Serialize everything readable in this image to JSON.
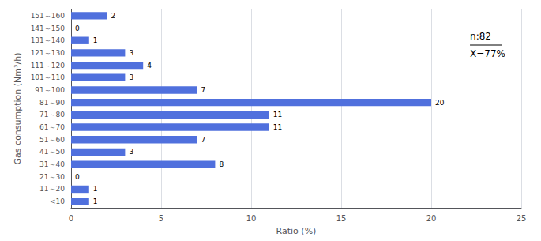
{
  "chart_data": {
    "type": "bar",
    "orientation": "horizontal",
    "categories": [
      "151～160",
      "141～150",
      "131～140",
      "121～130",
      "111～120",
      "101～110",
      "91～100",
      "81～90",
      "71～80",
      "61～70",
      "51～60",
      "41～50",
      "31～40",
      "21～30",
      "11～20",
      "<10"
    ],
    "values": [
      2,
      0,
      1,
      3,
      4,
      3,
      7,
      20,
      11,
      11,
      7,
      3,
      8,
      0,
      1,
      1
    ],
    "xlabel": "Ratio (%)",
    "ylabel": "Gas consumption (Nm³/h)",
    "xlim": [
      0,
      25
    ],
    "xticks": [
      0,
      5,
      10,
      15,
      20,
      25
    ],
    "grid": true,
    "data_labels": true,
    "annotations": [
      "n:82",
      "X=77%"
    ]
  }
}
